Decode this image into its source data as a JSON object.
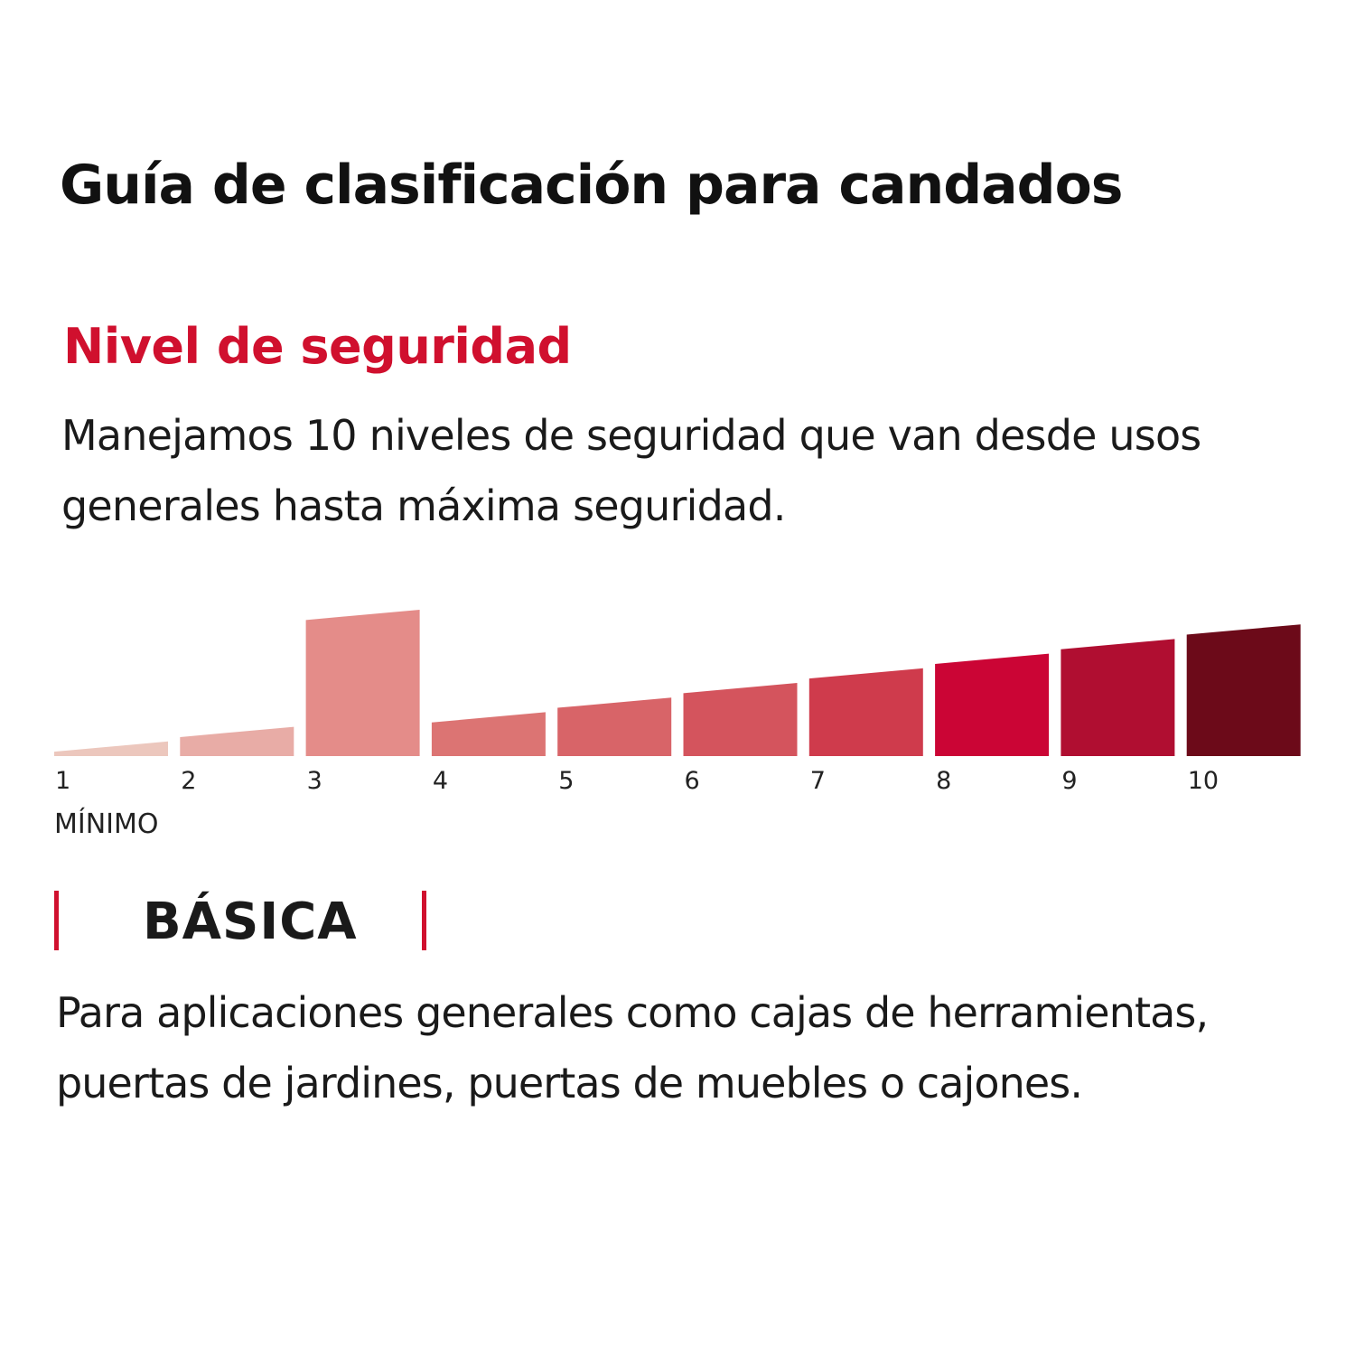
{
  "title": "Guía de clasificación para candados",
  "section": {
    "heading": "Nivel de seguridad",
    "description": "Manejamos 10 niveles de seguridad que van desde usos generales hasta máxima seguridad."
  },
  "colors": {
    "accent": "#d0102e",
    "text": "#111111"
  },
  "chart_data": {
    "type": "bar",
    "categories": [
      "1",
      "2",
      "3",
      "4",
      "5",
      "6",
      "7",
      "8",
      "9",
      "10"
    ],
    "values": [
      1,
      2,
      10,
      3,
      4,
      5,
      6,
      7,
      8,
      9
    ],
    "highlighted_level": 3,
    "colors": [
      "#ecc7bd",
      "#e8aca6",
      "#e48c89",
      "#dc7473",
      "#d86468",
      "#d4545d",
      "#cf3b4c",
      "#cb0535",
      "#b00e31",
      "#6c0a19"
    ],
    "axis_note": "MÍNIMO",
    "title": "",
    "xlabel": "",
    "ylabel": "",
    "grid": false,
    "legend": "none"
  },
  "level": {
    "name": "BÁSICA",
    "description": "Para aplicaciones generales como cajas de herramientas, puertas de jardines, puertas de muebles o cajones."
  }
}
